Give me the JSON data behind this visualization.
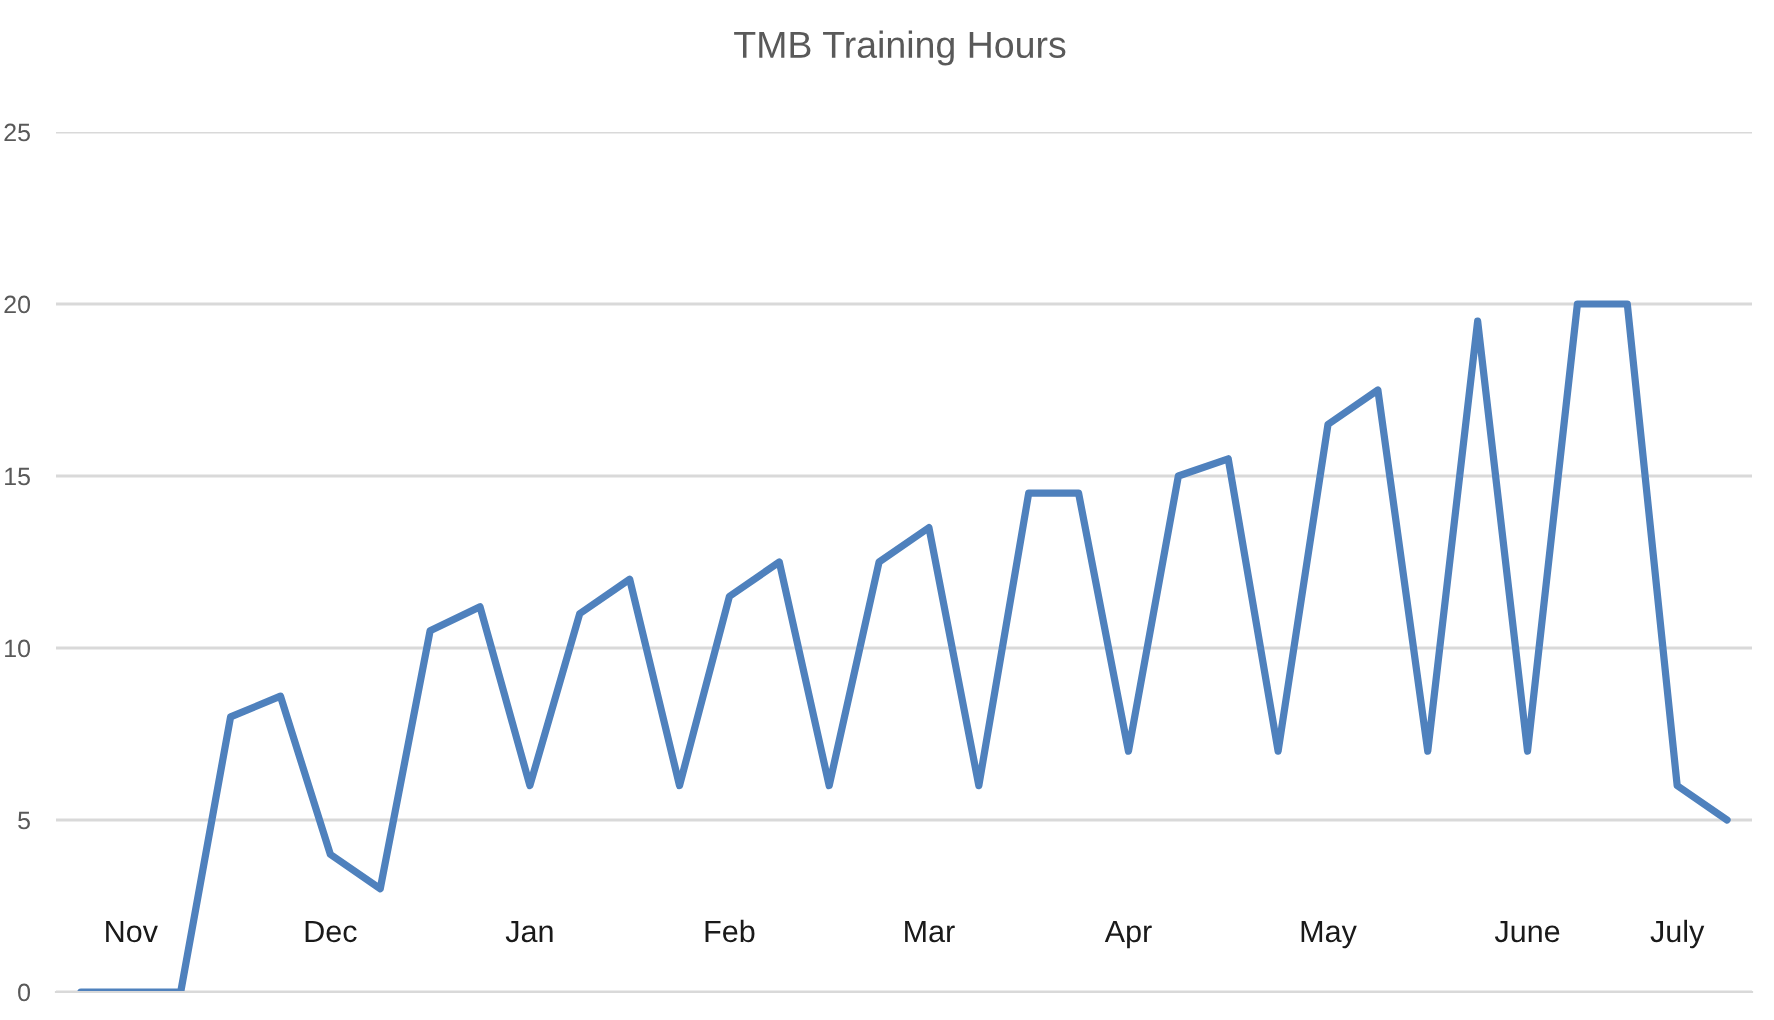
{
  "chart_data": {
    "type": "line",
    "title": "TMB Training Hours",
    "categories": [
      null,
      "Nov",
      null,
      null,
      null,
      "Dec",
      null,
      null,
      null,
      "Jan",
      null,
      null,
      null,
      "Feb",
      null,
      null,
      null,
      "Mar",
      null,
      null,
      null,
      "Apr",
      null,
      null,
      null,
      "May",
      null,
      null,
      null,
      "June",
      null,
      null,
      "July",
      null
    ],
    "series": [
      {
        "color": "#4f81bd",
        "values": [
          0,
          0,
          0,
          8,
          8.6,
          4,
          3,
          10.5,
          11.2,
          6,
          11,
          12,
          6,
          11.5,
          12.5,
          6,
          12.5,
          13.5,
          6,
          14.5,
          14.5,
          7,
          15,
          15.5,
          7,
          16.5,
          17.5,
          7,
          19.5,
          7,
          20,
          20,
          6,
          5
        ]
      }
    ],
    "ylim": [
      0,
      25
    ],
    "yticks": [
      0,
      5,
      10,
      15,
      20,
      25
    ],
    "grid": "y",
    "line_style": "solid"
  }
}
